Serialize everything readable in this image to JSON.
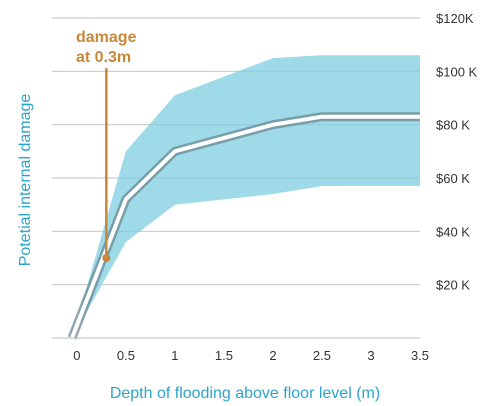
{
  "chart_data": {
    "type": "line",
    "title": "",
    "xlabel": "Depth of flooding above floor level (m)",
    "ylabel": "Potetial internal damage",
    "xlim": [
      -0.05,
      3.5
    ],
    "ylim": [
      0,
      120000
    ],
    "x_ticks": [
      {
        "value": 0,
        "label": "0"
      },
      {
        "value": 0.5,
        "label": "0.5"
      },
      {
        "value": 1,
        "label": "1"
      },
      {
        "value": 1.5,
        "label": "1.5"
      },
      {
        "value": 2,
        "label": "2"
      },
      {
        "value": 2.5,
        "label": "2.5"
      },
      {
        "value": 3,
        "label": "3"
      },
      {
        "value": 3.5,
        "label": "3.5"
      }
    ],
    "y_ticks": [
      {
        "value": 20000,
        "label": "$20 K"
      },
      {
        "value": 40000,
        "label": "$40 K"
      },
      {
        "value": 60000,
        "label": "$60 K"
      },
      {
        "value": 80000,
        "label": "$80 K"
      },
      {
        "value": 100000,
        "label": "$100 K"
      },
      {
        "value": 120000,
        "label": "$120K"
      }
    ],
    "grid": true,
    "series": [
      {
        "x": [
          -0.05,
          0.5,
          1,
          2,
          2.5,
          3.5
        ],
        "y": [
          0,
          52000,
          70000,
          80000,
          83000,
          83000
        ],
        "color": "#ffffff",
        "halo_color": "#6b8a95"
      }
    ],
    "band": {
      "color": "#7ecde0",
      "x": [
        -0.05,
        0.5,
        1,
        2,
        2.5,
        3.5
      ],
      "upper": [
        0,
        70000,
        91000,
        105000,
        106000,
        106000
      ],
      "lower": [
        0,
        36000,
        50000,
        54000,
        57000,
        57000
      ]
    },
    "annotation": {
      "lines": [
        "damage",
        "at 0.3m"
      ],
      "x": 0.3,
      "y": 30000,
      "color": "#c8883a"
    },
    "colors": {
      "axis_title": "#2aa6c9",
      "grid": "#c9c9c9",
      "axis": "#c9c9c9"
    }
  }
}
